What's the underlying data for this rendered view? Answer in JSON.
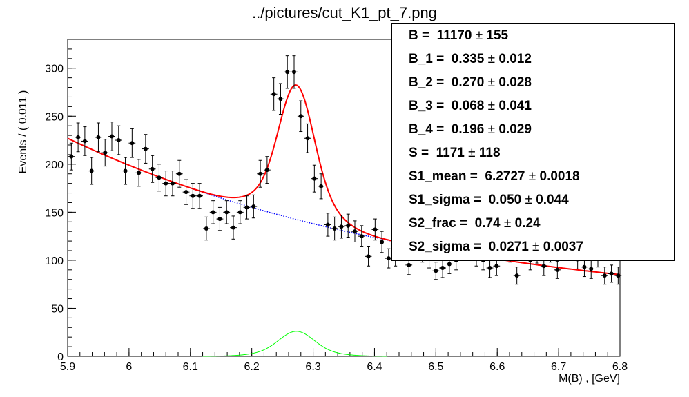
{
  "window_title": "../pictures/cut_K1_pt_7.png",
  "chart_data": {
    "type": "scatter",
    "title": "../pictures/cut_K1_pt_7.png",
    "xlabel": "M(B) , [GeV]",
    "ylabel": "Events / ( 0.011 )",
    "xlim": [
      5.9,
      6.8
    ],
    "ylim": [
      0,
      330
    ],
    "x_ticks": [
      "5.9",
      "6",
      "6.1",
      "6.2",
      "6.3",
      "6.4",
      "6.5",
      "6.6",
      "6.7",
      "6.8"
    ],
    "y_ticks": [
      "0",
      "50",
      "100",
      "150",
      "200",
      "250",
      "300"
    ],
    "x_tick_values": [
      5.9,
      6.0,
      6.1,
      6.2,
      6.3,
      6.4,
      6.5,
      6.6,
      6.7,
      6.8
    ],
    "y_tick_values": [
      0,
      50,
      100,
      150,
      200,
      250,
      300
    ],
    "grid": false,
    "bin_width": 0.011,
    "data_points": {
      "x": [
        5.906,
        5.917,
        5.928,
        5.939,
        5.95,
        5.961,
        5.972,
        5.983,
        5.994,
        6.005,
        6.016,
        6.027,
        6.038,
        6.049,
        6.06,
        6.071,
        6.082,
        6.093,
        6.104,
        6.115,
        6.126,
        6.137,
        6.148,
        6.159,
        6.17,
        6.181,
        6.192,
        6.203,
        6.214,
        6.225,
        6.236,
        6.247,
        6.258,
        6.269,
        6.28,
        6.291,
        6.302,
        6.313,
        6.324,
        6.335,
        6.346,
        6.357,
        6.368,
        6.379,
        6.39,
        6.401,
        6.412,
        6.423,
        6.434,
        6.445,
        6.456,
        6.467,
        6.478,
        6.489,
        6.5,
        6.511,
        6.522,
        6.533,
        6.544,
        6.555,
        6.566,
        6.577,
        6.588,
        6.599,
        6.61,
        6.621,
        6.632,
        6.643,
        6.654,
        6.665,
        6.676,
        6.687,
        6.698,
        6.709,
        6.72,
        6.731,
        6.742,
        6.753,
        6.764,
        6.775,
        6.786,
        6.797
      ],
      "y": [
        208,
        228,
        224,
        193,
        228,
        212,
        229,
        225,
        193,
        222,
        191,
        216,
        195,
        186,
        180,
        180,
        190,
        171,
        167,
        167,
        133,
        150,
        143,
        150,
        134,
        150,
        155,
        156,
        190,
        194,
        273,
        268,
        296,
        296,
        250,
        227,
        185,
        177,
        137,
        133,
        135,
        136,
        130,
        125,
        104,
        132,
        119,
        102,
        104,
        110,
        95,
        112,
        108,
        102,
        89,
        92,
        96,
        100,
        110,
        118,
        104,
        100,
        92,
        94,
        110,
        108,
        84,
        112,
        100,
        107,
        94,
        108,
        90,
        117,
        114,
        101,
        93,
        91,
        103,
        84,
        86,
        84
      ],
      "y_err": [
        14,
        15,
        15,
        14,
        15,
        14,
        15,
        15,
        14,
        15,
        14,
        15,
        14,
        14,
        13,
        13,
        14,
        13,
        13,
        13,
        12,
        12,
        12,
        12,
        12,
        12,
        12,
        12,
        14,
        14,
        17,
        16,
        17,
        17,
        16,
        15,
        14,
        13,
        12,
        12,
        12,
        12,
        11,
        11,
        10,
        11,
        11,
        10,
        10,
        10,
        10,
        11,
        10,
        10,
        9,
        10,
        10,
        10,
        10,
        11,
        10,
        10,
        10,
        10,
        10,
        10,
        9,
        11,
        10,
        10,
        10,
        10,
        9,
        11,
        11,
        10,
        10,
        10,
        10,
        9,
        9,
        9
      ]
    },
    "curves": [
      {
        "name": "total fit",
        "color": "#ff0000",
        "style": "solid"
      },
      {
        "name": "background",
        "color": "#0000ff",
        "style": "dotted"
      },
      {
        "name": "signal",
        "color": "#00ff00",
        "style": "solid"
      }
    ],
    "model": {
      "bkg_start": 227,
      "bkg_end": 85,
      "bkg_decay": 1.5,
      "sig_mean": 6.2727,
      "sig_sigma_core": 0.0271,
      "sig_sigma_wide": 0.05,
      "sig_frac": 0.74,
      "sig_peak_total": 140,
      "sig_peak_component": 26
    },
    "annotations": [
      {
        "label": "B =",
        "value": "11170",
        "error": "155"
      },
      {
        "label": "B_1 =",
        "value": "0.335",
        "error": "0.012"
      },
      {
        "label": "B_2 =",
        "value": "0.270",
        "error": "0.028"
      },
      {
        "label": "B_3 =",
        "value": "0.068",
        "error": "0.041"
      },
      {
        "label": "B_4 =",
        "value": "0.196",
        "error": "0.029"
      },
      {
        "label": "S =",
        "value": "1171",
        "error": "118"
      },
      {
        "label": "S1_mean =",
        "value": "6.2727",
        "error": "0.0018"
      },
      {
        "label": "S1_sigma =",
        "value": "0.050",
        "error": "0.044"
      },
      {
        "label": "S2_frac =",
        "value": "0.74",
        "error": "0.24"
      },
      {
        "label": "S2_sigma =",
        "value": "0.0271",
        "error": "0.0037"
      }
    ]
  }
}
